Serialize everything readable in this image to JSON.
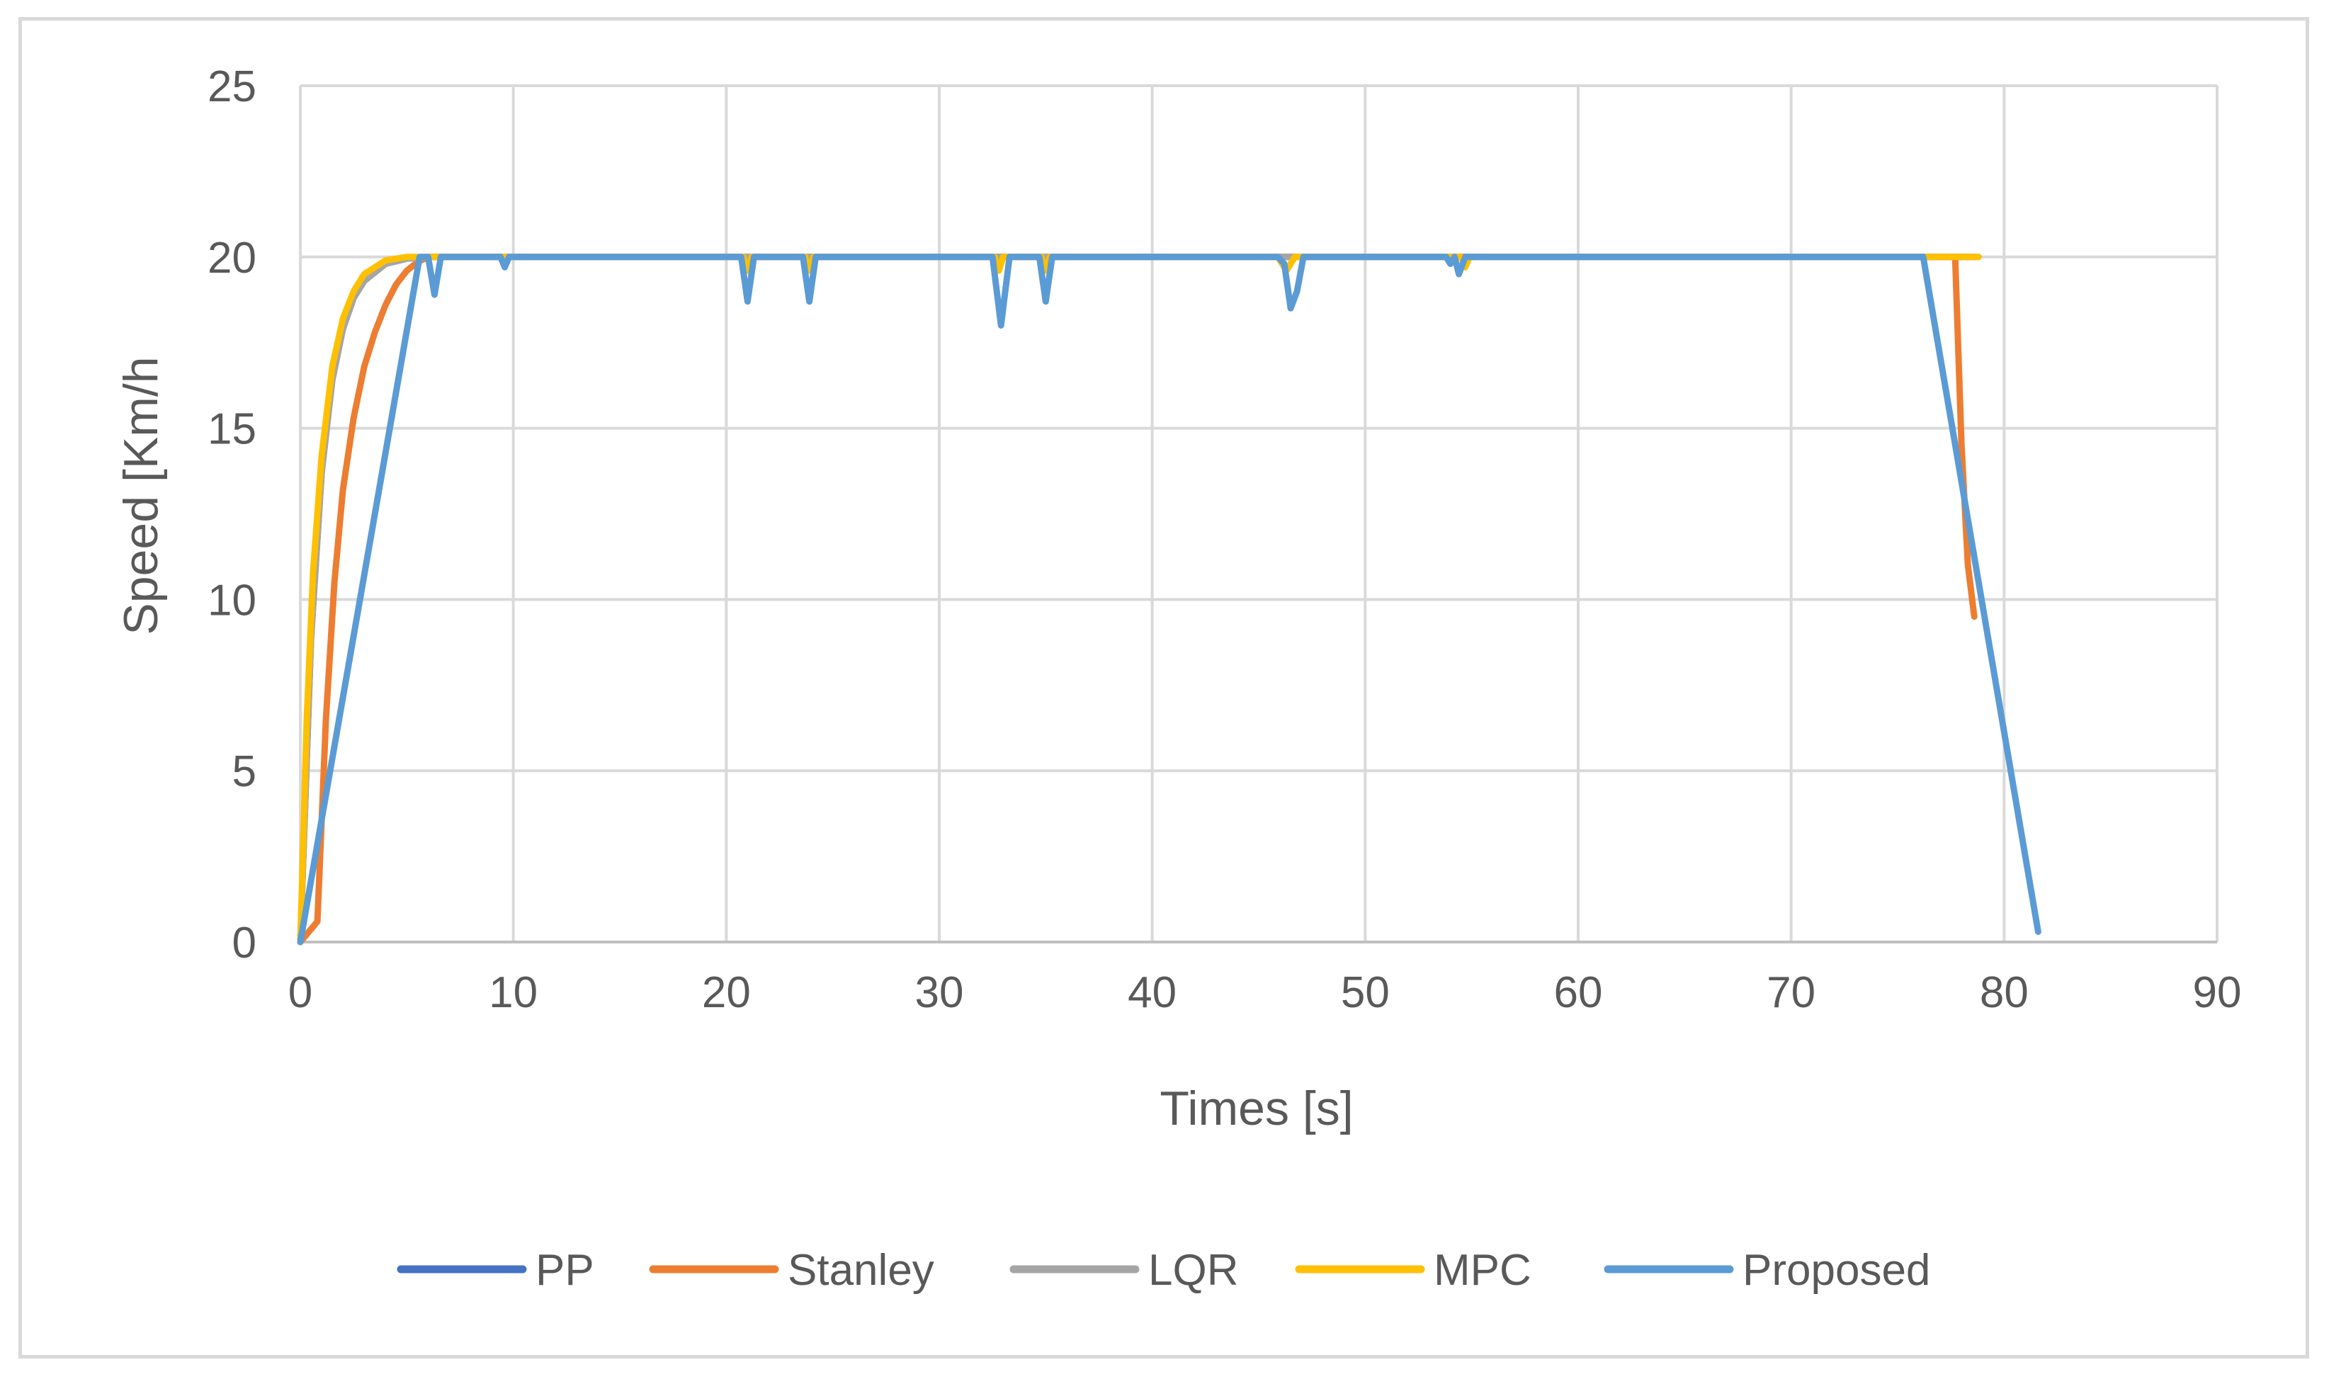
{
  "chart_data": {
    "type": "line",
    "title": "",
    "xlabel": "Times [s]",
    "ylabel": "Speed [Km/h",
    "xlim": [
      0,
      90
    ],
    "ylim": [
      0,
      25
    ],
    "xticks": [
      0,
      10,
      20,
      30,
      40,
      50,
      60,
      70,
      80,
      90
    ],
    "yticks": [
      0,
      5,
      10,
      15,
      20,
      25
    ],
    "grid": true,
    "legend_position": "bottom",
    "series": [
      {
        "name": "PP",
        "color": "#4472c4",
        "points": [
          [
            0,
            0
          ],
          [
            0.5,
            8.8
          ],
          [
            1,
            13.7
          ],
          [
            1.5,
            16.4
          ],
          [
            2,
            17.9
          ],
          [
            2.5,
            18.8
          ],
          [
            3,
            19.3
          ],
          [
            4,
            19.8
          ],
          [
            5,
            19.95
          ],
          [
            6,
            20
          ],
          [
            78.6,
            20
          ]
        ]
      },
      {
        "name": "Stanley",
        "color": "#ed7d31",
        "points": [
          [
            0,
            0
          ],
          [
            0.8,
            0.6
          ],
          [
            1.2,
            6.5
          ],
          [
            1.6,
            10.5
          ],
          [
            2,
            13.2
          ],
          [
            2.5,
            15.3
          ],
          [
            3,
            16.8
          ],
          [
            3.5,
            17.8
          ],
          [
            4,
            18.6
          ],
          [
            4.5,
            19.2
          ],
          [
            5,
            19.6
          ],
          [
            5.5,
            19.85
          ],
          [
            6,
            20
          ],
          [
            77.7,
            20
          ],
          [
            78.0,
            14.5
          ],
          [
            78.3,
            11.0
          ],
          [
            78.6,
            9.5
          ]
        ]
      },
      {
        "name": "LQR",
        "color": "#a5a5a5",
        "points": [
          [
            0,
            0
          ],
          [
            0.5,
            8.8
          ],
          [
            1,
            13.7
          ],
          [
            1.5,
            16.4
          ],
          [
            2,
            17.9
          ],
          [
            2.5,
            18.8
          ],
          [
            3,
            19.3
          ],
          [
            4,
            19.8
          ],
          [
            5,
            19.95
          ],
          [
            6,
            20
          ],
          [
            78.8,
            20
          ]
        ]
      },
      {
        "name": "MPC",
        "color": "#ffc000",
        "points": [
          [
            0,
            0
          ],
          [
            0.3,
            6.5
          ],
          [
            0.6,
            10.8
          ],
          [
            1,
            14.2
          ],
          [
            1.5,
            16.8
          ],
          [
            2,
            18.2
          ],
          [
            2.5,
            19.0
          ],
          [
            3,
            19.5
          ],
          [
            4,
            19.9
          ],
          [
            5,
            20
          ],
          [
            20.8,
            20
          ],
          [
            21.0,
            19.6
          ],
          [
            21.2,
            20
          ],
          [
            23.7,
            20
          ],
          [
            23.9,
            19.6
          ],
          [
            24.1,
            20
          ],
          [
            32.6,
            20
          ],
          [
            32.8,
            19.6
          ],
          [
            33.0,
            20
          ],
          [
            34.8,
            20
          ],
          [
            35.0,
            19.6
          ],
          [
            35.2,
            20
          ],
          [
            45.9,
            20
          ],
          [
            46.3,
            19.6
          ],
          [
            46.7,
            20
          ],
          [
            54.5,
            20
          ],
          [
            54.7,
            19.7
          ],
          [
            54.9,
            20
          ],
          [
            78.8,
            20
          ]
        ]
      },
      {
        "name": "Proposed",
        "color": "#5b9bd5",
        "points": [
          [
            0,
            0
          ],
          [
            5.6,
            20
          ],
          [
            6.0,
            20
          ],
          [
            6.3,
            18.9
          ],
          [
            6.6,
            20
          ],
          [
            9.4,
            20
          ],
          [
            9.6,
            19.7
          ],
          [
            9.8,
            20
          ],
          [
            20.7,
            20
          ],
          [
            21.0,
            18.7
          ],
          [
            21.3,
            20
          ],
          [
            23.6,
            20
          ],
          [
            23.9,
            18.7
          ],
          [
            24.2,
            20
          ],
          [
            32.5,
            20
          ],
          [
            32.9,
            18.0
          ],
          [
            33.3,
            20
          ],
          [
            34.7,
            20
          ],
          [
            35.0,
            18.7
          ],
          [
            35.3,
            20
          ],
          [
            45.9,
            20
          ],
          [
            46.2,
            19.8
          ],
          [
            46.5,
            18.5
          ],
          [
            46.8,
            19.0
          ],
          [
            47.1,
            20
          ],
          [
            53.8,
            20
          ],
          [
            54.0,
            19.8
          ],
          [
            54.2,
            20
          ],
          [
            54.4,
            19.5
          ],
          [
            54.7,
            20
          ],
          [
            76.2,
            20
          ],
          [
            81.6,
            0.3
          ]
        ]
      }
    ]
  }
}
